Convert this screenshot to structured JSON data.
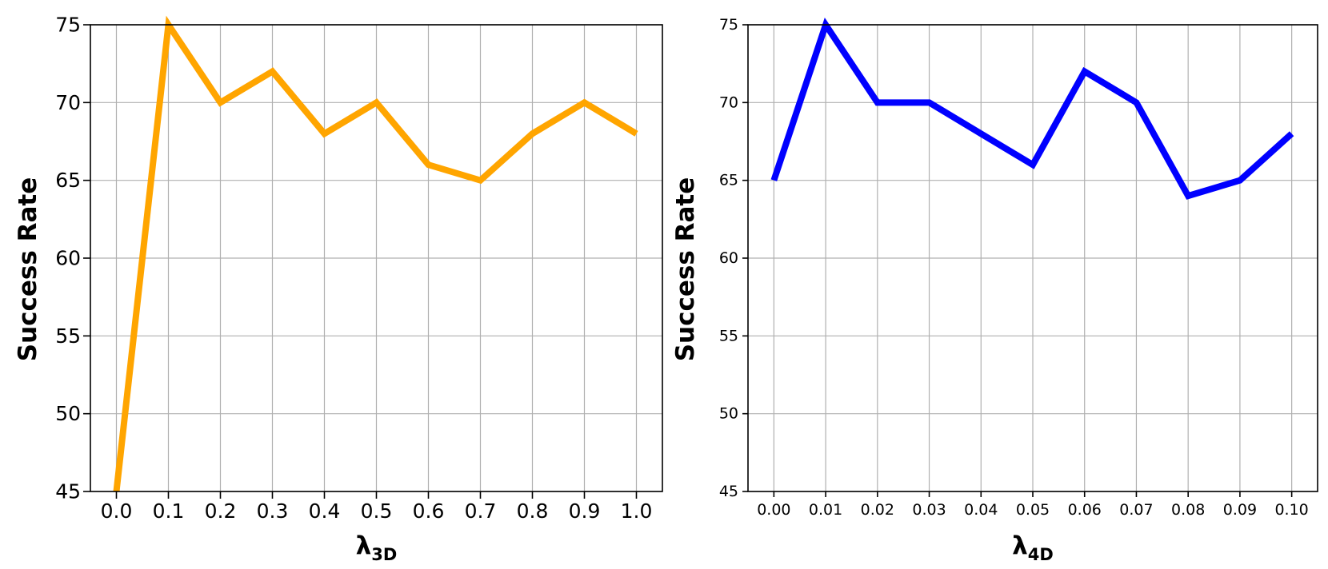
{
  "chart_data": [
    {
      "type": "line",
      "ylabel": "Success Rate",
      "xlabel_main": "λ",
      "xlabel_sub": "3D",
      "x": [
        0.0,
        0.1,
        0.2,
        0.3,
        0.4,
        0.5,
        0.6,
        0.7,
        0.8,
        0.9,
        1.0
      ],
      "x_tick_labels": [
        "0.0",
        "0.1",
        "0.2",
        "0.3",
        "0.4",
        "0.5",
        "0.6",
        "0.7",
        "0.8",
        "0.9",
        "1.0"
      ],
      "y_ticks": [
        45,
        50,
        55,
        60,
        65,
        70,
        75
      ],
      "ylim": [
        45,
        75
      ],
      "xlim": [
        -0.05,
        1.05
      ],
      "grid": true,
      "series": [
        {
          "values": [
            45,
            75,
            70,
            72,
            68,
            70,
            66,
            65,
            68,
            70,
            68
          ],
          "color": "#FFA500"
        }
      ]
    },
    {
      "type": "line",
      "ylabel": "Success Rate",
      "xlabel_main": "λ",
      "xlabel_sub": "4D",
      "x": [
        0.0,
        0.01,
        0.02,
        0.03,
        0.04,
        0.05,
        0.06,
        0.07,
        0.08,
        0.09,
        0.1
      ],
      "x_tick_labels": [
        "0.00",
        "0.01",
        "0.02",
        "0.03",
        "0.04",
        "0.05",
        "0.06",
        "0.07",
        "0.08",
        "0.09",
        "0.10"
      ],
      "y_ticks": [
        45,
        50,
        55,
        60,
        65,
        70,
        75
      ],
      "ylim": [
        45,
        75
      ],
      "xlim": [
        -0.005,
        0.105
      ],
      "grid": true,
      "series": [
        {
          "values": [
            65,
            75,
            70,
            70,
            68,
            66,
            72,
            70,
            64,
            65,
            68
          ],
          "color": "#0000FF"
        }
      ]
    }
  ]
}
